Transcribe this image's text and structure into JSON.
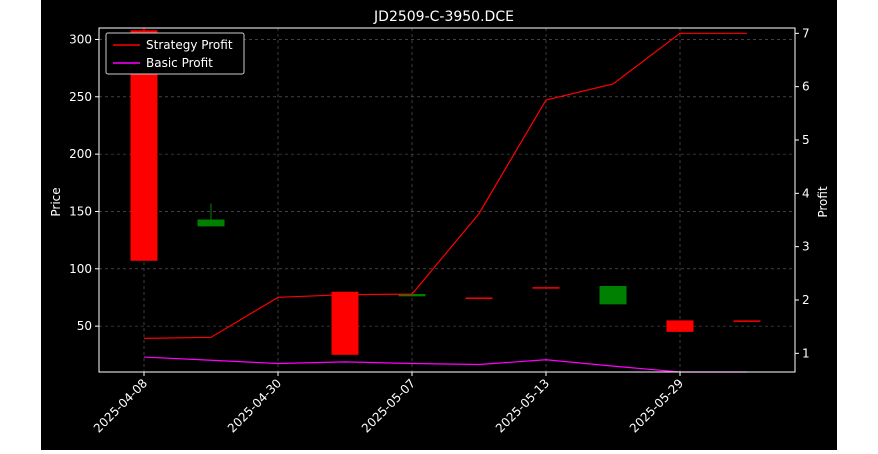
{
  "chart_data": {
    "type": "candlestick",
    "title": "JD2509-C-3950.DCE",
    "xlabel": "",
    "ylabel_left": "Price",
    "ylabel_right": "Profit",
    "ylim_left": [
      10,
      310
    ],
    "yticks_left": [
      50,
      100,
      150,
      200,
      250,
      300
    ],
    "ylim_right": [
      0.65,
      7.1
    ],
    "yticks_right": [
      1,
      2,
      3,
      4,
      5,
      6,
      7
    ],
    "x_tick_labels": [
      "2025-04-08",
      "2025-04-30",
      "2025-05-07",
      "2025-05-13",
      "2025-05-29"
    ],
    "x_tick_positions": [
      0,
      2,
      4,
      6,
      8
    ],
    "grid": true,
    "legend_position": "upper-left",
    "colors": {
      "up": "#ff0000",
      "down": "#008000",
      "strategy": "#ff0000",
      "basic": "#ff00ff",
      "grid": "#666666"
    },
    "candles": [
      {
        "x": 0,
        "open": 107,
        "close": 308,
        "high": 310,
        "low": 107,
        "direction": "up"
      },
      {
        "x": 1,
        "open": 143,
        "close": 137,
        "high": 157,
        "low": 137,
        "direction": "down"
      },
      {
        "x": 3,
        "open": 25,
        "close": 80,
        "high": 80,
        "low": 25,
        "direction": "up"
      },
      {
        "x": 4,
        "open": 78,
        "close": 76,
        "high": 78,
        "low": 76,
        "direction": "down"
      },
      {
        "x": 5,
        "open": 75,
        "close": 75,
        "high": 75,
        "low": 75,
        "direction": "up"
      },
      {
        "x": 6,
        "open": 84,
        "close": 84,
        "high": 84,
        "low": 84,
        "direction": "up"
      },
      {
        "x": 7,
        "open": 85,
        "close": 69,
        "high": 85,
        "low": 69,
        "direction": "down"
      },
      {
        "x": 8,
        "open": 45,
        "close": 55,
        "high": 55,
        "low": 45,
        "direction": "up"
      },
      {
        "x": 9,
        "open": 55,
        "close": 55,
        "high": 55,
        "low": 55,
        "direction": "up"
      }
    ],
    "series": [
      {
        "name": "Strategy Profit",
        "axis": "right",
        "x": [
          0,
          1,
          2,
          3,
          4,
          5,
          6,
          7,
          8,
          9
        ],
        "values": [
          1.28,
          1.3,
          2.05,
          2.1,
          2.11,
          3.62,
          5.75,
          6.05,
          7.0,
          7.0
        ]
      },
      {
        "name": "Basic Profit",
        "axis": "right",
        "x": [
          0,
          1,
          2,
          3,
          4,
          5,
          6,
          7,
          8,
          9
        ],
        "values": [
          0.93,
          0.87,
          0.81,
          0.84,
          0.81,
          0.79,
          0.88,
          0.76,
          0.65,
          0.65
        ]
      }
    ]
  }
}
